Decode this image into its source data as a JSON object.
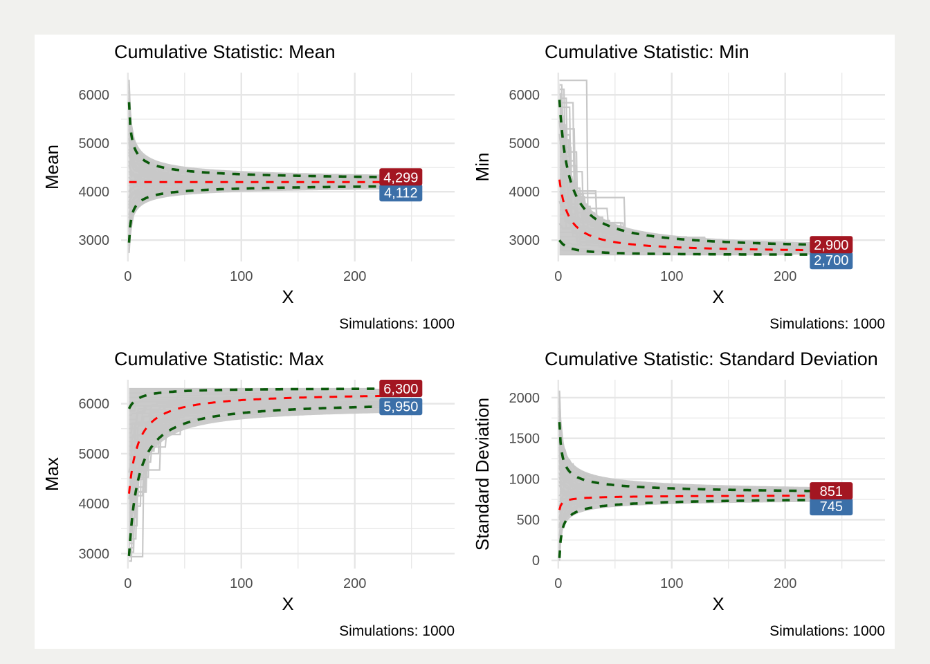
{
  "figure": {
    "background": "#f1f1ee",
    "panel_background": "#ffffff",
    "colors": {
      "simulation_lines": "#c8c8c8",
      "mean_line": "#ff0000",
      "quantile_lines": "#0b5a0b",
      "upper_label_fill": "#a31621",
      "lower_label_fill": "#3b6fa8",
      "grid": "#e6e6e6"
    }
  },
  "chart_data": [
    {
      "id": "mean",
      "type": "line",
      "title": "Cumulative Statistic: Mean",
      "xlabel": "X",
      "ylabel": "Mean",
      "caption": "Simulations: 1000",
      "xlim": [
        -6,
        288
      ],
      "ylim": [
        2560,
        6460
      ],
      "x_ticks": [
        0,
        100,
        200
      ],
      "x_tick_labels": [
        "0",
        "100",
        "200"
      ],
      "x_minor": [
        50,
        150,
        250
      ],
      "y_ticks": [
        3000,
        4000,
        5000,
        6000
      ],
      "y_tick_labels": [
        "3000",
        "4000",
        "5000",
        "6000"
      ],
      "y_minor": [
        3500,
        4500,
        5500
      ],
      "grid": true,
      "n_points": 240,
      "envelope": {
        "start_low": 2700,
        "start_high": 6300,
        "end_low": 4050,
        "end_high": 4350
      },
      "series": [
        {
          "name": "mean",
          "style": "dashed-red",
          "start": 4200,
          "end": 4200
        },
        {
          "name": "upper quantile",
          "style": "dashed-green",
          "start": 5850,
          "end": 4299
        },
        {
          "name": "lower quantile",
          "style": "dashed-green",
          "start": 2950,
          "end": 4112
        }
      ],
      "end_labels": {
        "upper": "4,299",
        "lower": "4,112",
        "upper_value": 4299,
        "lower_value": 4112
      }
    },
    {
      "id": "min",
      "type": "line",
      "title": "Cumulative Statistic: Min",
      "xlabel": "X",
      "ylabel": "Min",
      "caption": "Simulations: 1000",
      "xlim": [
        -6,
        288
      ],
      "ylim": [
        2560,
        6460
      ],
      "x_ticks": [
        0,
        100,
        200
      ],
      "x_tick_labels": [
        "0",
        "100",
        "200"
      ],
      "x_minor": [
        50,
        150,
        250
      ],
      "y_ticks": [
        3000,
        4000,
        5000,
        6000
      ],
      "y_tick_labels": [
        "3000",
        "4000",
        "5000",
        "6000"
      ],
      "y_minor": [
        3500,
        4500,
        5500
      ],
      "grid": true,
      "n_points": 240,
      "envelope": {
        "start_low": 2700,
        "start_high": 6300,
        "end_low": 2700,
        "end_high": 2950
      },
      "series": [
        {
          "name": "mean",
          "style": "dashed-red",
          "start": 4250,
          "end": 2790
        },
        {
          "name": "upper quantile",
          "style": "dashed-green",
          "start": 5900,
          "end": 2900
        },
        {
          "name": "lower quantile",
          "style": "dashed-green",
          "start": 3000,
          "end": 2700
        }
      ],
      "end_labels": {
        "upper": "2,900",
        "lower": "2,700",
        "upper_value": 2900,
        "lower_value": 2700
      }
    },
    {
      "id": "max",
      "type": "line",
      "title": "Cumulative Statistic: Max",
      "xlabel": "X",
      "ylabel": "Max",
      "caption": "Simulations: 1000",
      "xlim": [
        -6,
        288
      ],
      "ylim": [
        2700,
        6480
      ],
      "x_ticks": [
        0,
        100,
        200
      ],
      "x_tick_labels": [
        "0",
        "100",
        "200"
      ],
      "x_minor": [
        50,
        150,
        250
      ],
      "y_ticks": [
        3000,
        4000,
        5000,
        6000
      ],
      "y_tick_labels": [
        "3000",
        "4000",
        "5000",
        "6000"
      ],
      "y_minor": [
        3500,
        4500,
        5500
      ],
      "grid": true,
      "n_points": 240,
      "envelope": {
        "start_low": 2850,
        "start_high": 6300,
        "end_low": 5820,
        "end_high": 6300
      },
      "series": [
        {
          "name": "mean",
          "style": "dashed-red",
          "start": 4200,
          "end": 6160
        },
        {
          "name": "upper quantile",
          "style": "dashed-green",
          "start": 5900,
          "end": 6300
        },
        {
          "name": "lower quantile",
          "style": "dashed-green",
          "start": 2950,
          "end": 5950
        }
      ],
      "end_labels": {
        "upper": "6,300",
        "lower": "5,950",
        "upper_value": 6300,
        "lower_value": 5950
      }
    },
    {
      "id": "sd",
      "type": "line",
      "title": "Cumulative Statistic: Standard Deviation",
      "xlabel": "X",
      "ylabel": "Standard Deviation",
      "caption": "Simulations: 1000",
      "xlim": [
        -6,
        288
      ],
      "ylim": [
        -100,
        2220
      ],
      "x_ticks": [
        0,
        100,
        200
      ],
      "x_tick_labels": [
        "0",
        "100",
        "200"
      ],
      "x_minor": [
        50,
        150,
        250
      ],
      "y_ticks": [
        0,
        500,
        1000,
        1500,
        2000
      ],
      "y_tick_labels": [
        "0",
        "500",
        "1000",
        "1500",
        "2000"
      ],
      "y_minor": [
        250,
        750,
        1250,
        1750
      ],
      "grid": true,
      "n_points": 240,
      "envelope": {
        "start_low": 0,
        "start_high": 2100,
        "end_low": 720,
        "end_high": 900
      },
      "series": [
        {
          "name": "mean",
          "style": "dashed-red",
          "start": 620,
          "end": 795
        },
        {
          "name": "upper quantile",
          "style": "dashed-green",
          "start": 1700,
          "end": 851
        },
        {
          "name": "lower quantile",
          "style": "dashed-green",
          "start": 30,
          "end": 745
        }
      ],
      "end_labels": {
        "upper": "851",
        "lower": "745",
        "upper_value": 851,
        "lower_value": 745
      }
    }
  ]
}
